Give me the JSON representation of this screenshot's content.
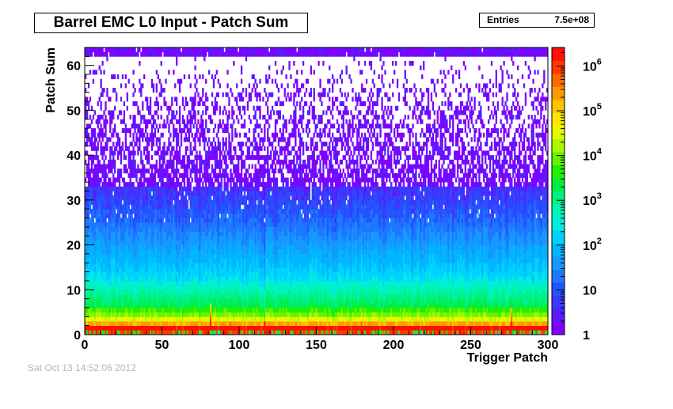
{
  "title": "Barrel EMC L0 Input - Patch Sum",
  "stats": {
    "label": "Entries",
    "value": "7.5e+08"
  },
  "footer": "Sat Oct 13 14:52:06 2012",
  "chart_data": {
    "type": "heatmap",
    "title": "Barrel EMC L0 Input - Patch Sum",
    "xlabel": "Trigger Patch",
    "ylabel": "Patch Sum",
    "xlim": [
      0,
      300
    ],
    "ylim": [
      0,
      64
    ],
    "x_ticks": [
      0,
      50,
      100,
      150,
      200,
      250,
      300
    ],
    "y_ticks": [
      0,
      10,
      20,
      30,
      40,
      50,
      60
    ],
    "z_scale": "log",
    "z_ticks": [
      {
        "value": 1,
        "label": "1"
      },
      {
        "value": 10,
        "label": "10"
      },
      {
        "value": 100,
        "label": "10^2"
      },
      {
        "value": 1000,
        "label": "10^3"
      },
      {
        "value": 10000,
        "label": "10^4"
      },
      {
        "value": 100000,
        "label": "10^5"
      },
      {
        "value": 1000000,
        "label": "10^6"
      }
    ],
    "zlim": [
      1,
      2600000
    ],
    "entries": "7.5e+08",
    "palette": [
      "#7f00ff",
      "#5a1cff",
      "#3a3aff",
      "#2255ff",
      "#1f77ff",
      "#1599ff",
      "#00b6ff",
      "#00d2ff",
      "#00eedd",
      "#00f4b4",
      "#00f083",
      "#00ee44",
      "#22f000",
      "#66f400",
      "#aaf800",
      "#e6fb00",
      "#ffe800",
      "#ffc400",
      "#ff9900",
      "#ff6a00",
      "#ff3a00",
      "#ff1000"
    ],
    "row_profile_description_values": {
      "y_rows": [
        0,
        1,
        2,
        3,
        4,
        5,
        6,
        8,
        10,
        12,
        15,
        20,
        25,
        30,
        35,
        40,
        45,
        50,
        55,
        60,
        62
      ],
      "typical_counts": [
        1000000,
        2000000,
        200000,
        30000,
        10000,
        5000,
        2000,
        1000,
        500,
        200,
        100,
        40,
        15,
        6,
        3,
        1.5,
        1,
        1,
        1,
        1,
        1
      ]
    }
  }
}
